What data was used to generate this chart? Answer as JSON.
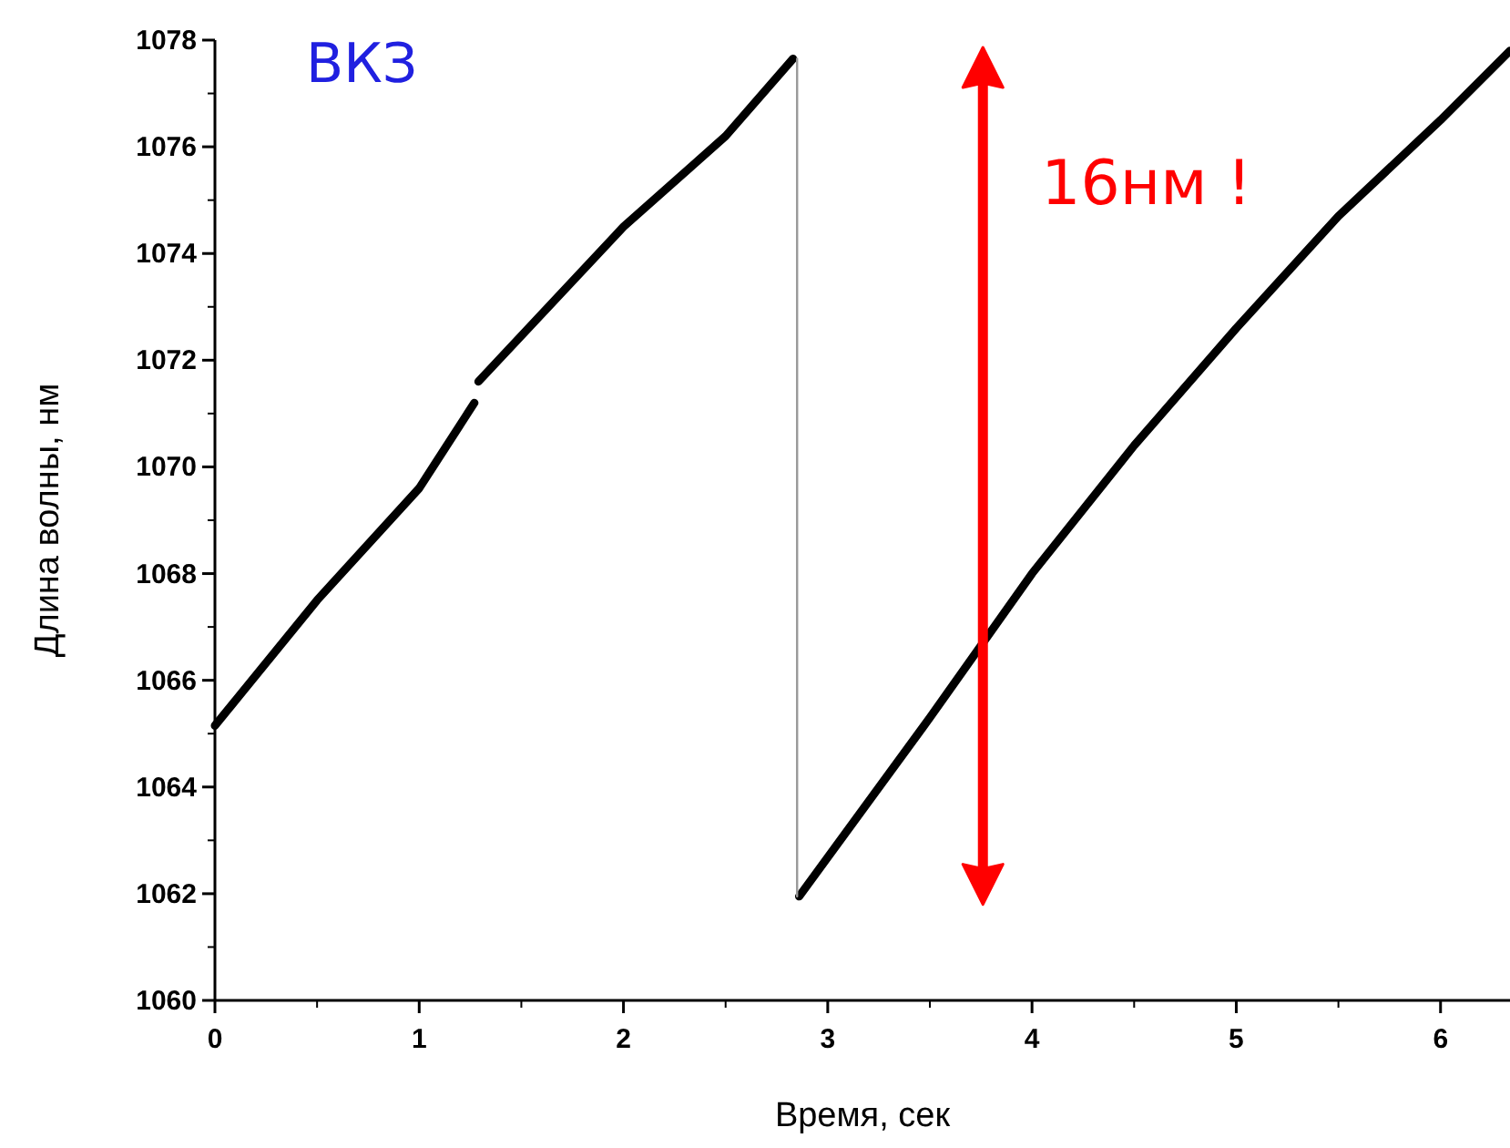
{
  "chart_data": {
    "type": "line",
    "xlabel": "Время, сек",
    "ylabel": "Длина волны, нм",
    "xlim": [
      0,
      6.34
    ],
    "xticks": [
      0,
      1,
      2,
      3,
      4,
      5,
      6
    ],
    "ylim": [
      1060,
      1078
    ],
    "yticks": [
      1060,
      1062,
      1064,
      1066,
      1068,
      1070,
      1072,
      1074,
      1076,
      1078
    ],
    "grid": false,
    "line_style": "solid",
    "series": [
      {
        "color": "#000000",
        "x": [
          0,
          0.5,
          1,
          1.27
        ],
        "values": [
          1065.15,
          1067.5,
          1069.6,
          1071.2
        ]
      },
      {
        "color": "#000000",
        "x": [
          1.29,
          2,
          2.5,
          2.83
        ],
        "values": [
          1071.6,
          1074.5,
          1076.2,
          1077.65
        ]
      },
      {
        "color": "#000000",
        "x": [
          2.86,
          3.5,
          4,
          4.5,
          5,
          5.5,
          6,
          6.34
        ],
        "values": [
          1061.95,
          1065.3,
          1068.0,
          1070.4,
          1072.6,
          1074.7,
          1076.5,
          1077.8
        ]
      },
      {
        "color": "#999999",
        "x": [
          2.85,
          2.85
        ],
        "values": [
          1077.65,
          1061.95
        ]
      }
    ],
    "annotations": [
      "ВКЗ",
      "16нм !"
    ]
  }
}
